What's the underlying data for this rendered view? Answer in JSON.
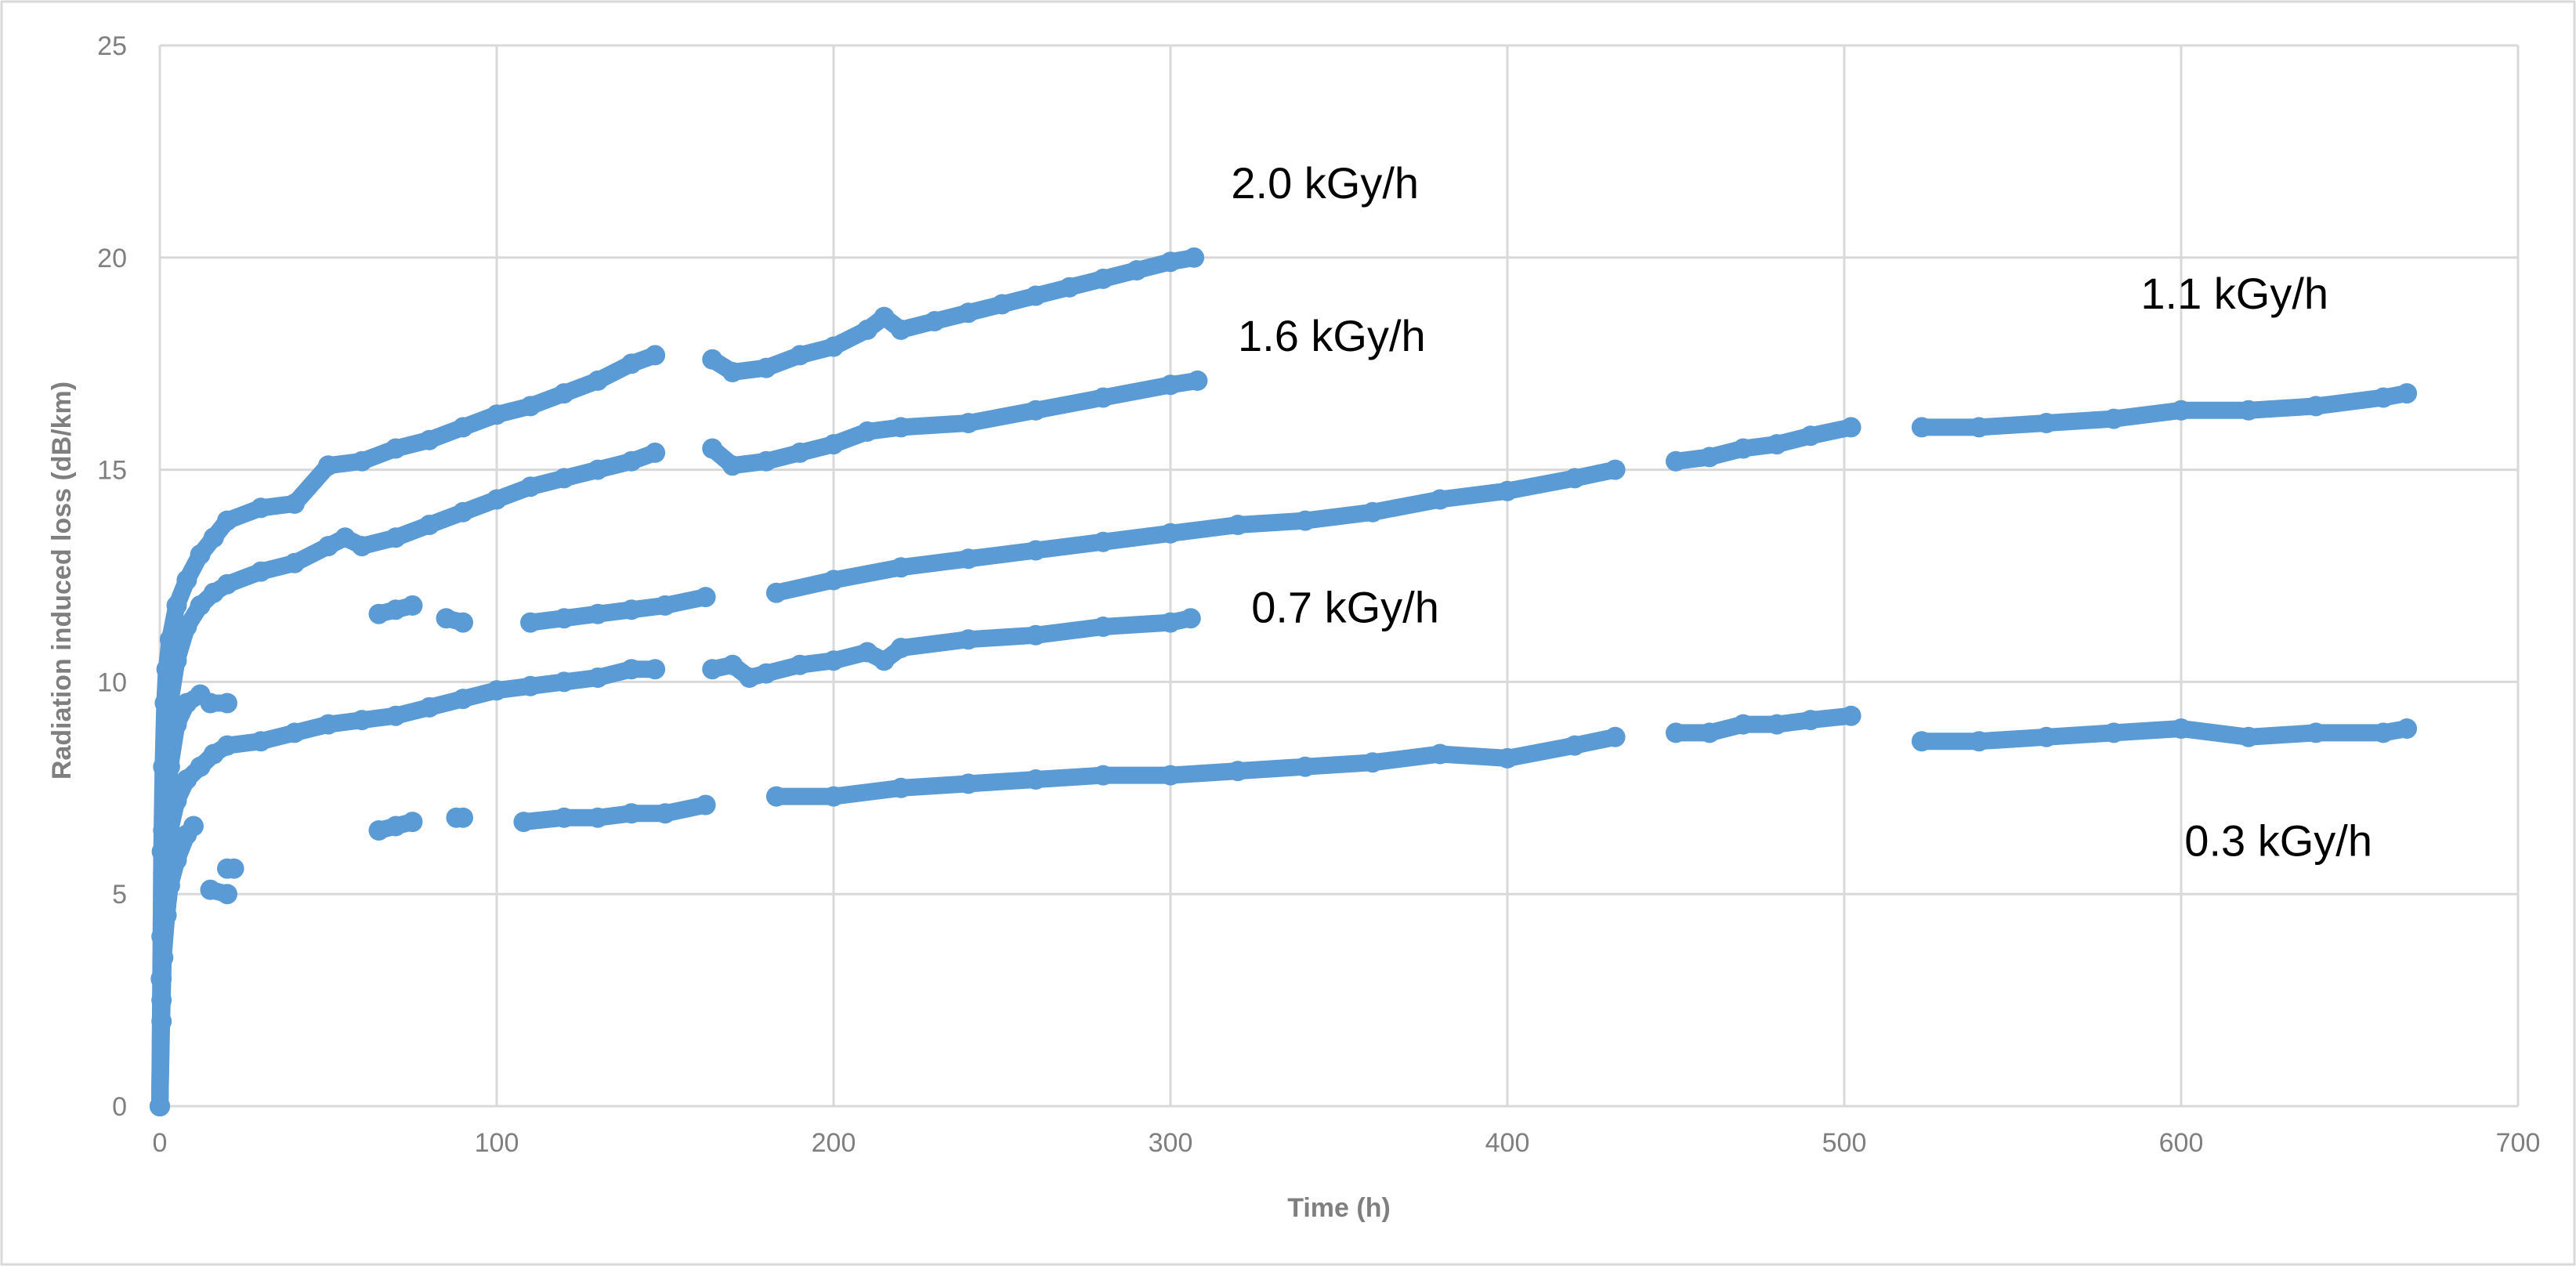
{
  "chart_data": {
    "type": "scatter",
    "title": "",
    "xlabel": "Time (h)",
    "ylabel": "Radiation induced loss (dB/km)",
    "xlim": [
      0,
      700
    ],
    "ylim": [
      0,
      25
    ],
    "x_ticks": [
      "0",
      "100",
      "200",
      "300",
      "400",
      "500",
      "600",
      "700"
    ],
    "y_ticks": [
      "0",
      "5",
      "10",
      "15",
      "20",
      "25"
    ],
    "grid": true,
    "legend": "none",
    "marker_color": "#5b9bd5",
    "series": [
      {
        "name": "2.0 kGy/h",
        "segments": [
          [
            [
              0,
              0
            ],
            [
              0.3,
              3
            ],
            [
              0.6,
              6
            ],
            [
              1,
              8
            ],
            [
              1.5,
              9.5
            ],
            [
              2,
              10.3
            ],
            [
              3,
              11
            ],
            [
              5,
              11.8
            ],
            [
              8,
              12.4
            ],
            [
              12,
              13
            ],
            [
              16,
              13.4
            ],
            [
              20,
              13.8
            ],
            [
              30,
              14.1
            ],
            [
              40,
              14.2
            ],
            [
              50,
              15.1
            ],
            [
              60,
              15.2
            ],
            [
              70,
              15.5
            ],
            [
              80,
              15.7
            ],
            [
              90,
              16
            ],
            [
              100,
              16.3
            ],
            [
              110,
              16.5
            ],
            [
              120,
              16.8
            ],
            [
              130,
              17.1
            ],
            [
              140,
              17.5
            ],
            [
              147,
              17.7
            ]
          ],
          [
            [
              164,
              17.6
            ],
            [
              170,
              17.3
            ],
            [
              180,
              17.4
            ],
            [
              190,
              17.7
            ],
            [
              200,
              17.9
            ],
            [
              210,
              18.3
            ],
            [
              215,
              18.6
            ],
            [
              220,
              18.3
            ],
            [
              230,
              18.5
            ],
            [
              240,
              18.7
            ],
            [
              250,
              18.9
            ],
            [
              260,
              19.1
            ],
            [
              270,
              19.3
            ],
            [
              280,
              19.5
            ],
            [
              290,
              19.7
            ],
            [
              300,
              19.9
            ],
            [
              307,
              20
            ]
          ]
        ]
      },
      {
        "name": "1.6 kGy/h",
        "segments": [
          [
            [
              0,
              0
            ],
            [
              0.5,
              4
            ],
            [
              1,
              6.5
            ],
            [
              2,
              8.5
            ],
            [
              3,
              9.5
            ],
            [
              5,
              10.5
            ],
            [
              8,
              11.3
            ],
            [
              12,
              11.8
            ],
            [
              16,
              12.1
            ],
            [
              20,
              12.3
            ],
            [
              30,
              12.6
            ],
            [
              40,
              12.8
            ],
            [
              50,
              13.2
            ],
            [
              55,
              13.4
            ],
            [
              60,
              13.2
            ],
            [
              70,
              13.4
            ],
            [
              80,
              13.7
            ],
            [
              90,
              14
            ],
            [
              100,
              14.3
            ],
            [
              110,
              14.6
            ],
            [
              120,
              14.8
            ],
            [
              130,
              15
            ],
            [
              140,
              15.2
            ],
            [
              147,
              15.4
            ]
          ],
          [
            [
              164,
              15.5
            ],
            [
              170,
              15.1
            ],
            [
              180,
              15.2
            ],
            [
              190,
              15.4
            ],
            [
              200,
              15.6
            ],
            [
              210,
              15.9
            ],
            [
              220,
              16
            ],
            [
              240,
              16.1
            ],
            [
              260,
              16.4
            ],
            [
              280,
              16.7
            ],
            [
              300,
              17
            ],
            [
              308,
              17.1
            ]
          ]
        ]
      },
      {
        "name": "1.1 kGy/h",
        "segments": [
          [
            [
              0,
              0
            ],
            [
              0.5,
              3
            ],
            [
              1,
              5.5
            ],
            [
              2,
              7
            ],
            [
              3,
              8
            ],
            [
              5,
              9
            ],
            [
              8,
              9.5
            ],
            [
              12,
              9.7
            ]
          ],
          [
            [
              65,
              11.6
            ],
            [
              70,
              11.7
            ],
            [
              75,
              11.8
            ]
          ],
          [
            [
              85,
              11.5
            ],
            [
              90,
              11.4
            ]
          ],
          [
            [
              110,
              11.4
            ],
            [
              120,
              11.5
            ],
            [
              130,
              11.6
            ],
            [
              140,
              11.7
            ],
            [
              150,
              11.8
            ],
            [
              162,
              12
            ]
          ],
          [
            [
              183,
              12.1
            ],
            [
              200,
              12.4
            ],
            [
              220,
              12.7
            ],
            [
              240,
              12.9
            ],
            [
              260,
              13.1
            ],
            [
              280,
              13.3
            ],
            [
              300,
              13.5
            ],
            [
              320,
              13.7
            ],
            [
              340,
              13.8
            ],
            [
              360,
              14
            ],
            [
              380,
              14.3
            ],
            [
              400,
              14.5
            ],
            [
              420,
              14.8
            ],
            [
              432,
              15
            ]
          ],
          [
            [
              450,
              15.2
            ],
            [
              460,
              15.3
            ],
            [
              470,
              15.5
            ],
            [
              480,
              15.6
            ],
            [
              490,
              15.8
            ],
            [
              502,
              16
            ]
          ],
          [
            [
              523,
              16
            ],
            [
              540,
              16
            ],
            [
              560,
              16.1
            ],
            [
              580,
              16.2
            ],
            [
              600,
              16.4
            ],
            [
              620,
              16.4
            ],
            [
              640,
              16.5
            ],
            [
              660,
              16.7
            ],
            [
              667,
              16.8
            ]
          ]
        ]
      },
      {
        "name": "0.7 kGy/h",
        "segments": [
          [
            [
              0,
              0
            ],
            [
              0.5,
              2.5
            ],
            [
              1,
              4.5
            ],
            [
              2,
              5.8
            ],
            [
              3,
              6.5
            ],
            [
              5,
              7.2
            ],
            [
              8,
              7.7
            ],
            [
              12,
              8
            ],
            [
              16,
              8.3
            ],
            [
              20,
              8.5
            ],
            [
              30,
              8.6
            ],
            [
              40,
              8.8
            ],
            [
              50,
              9
            ],
            [
              60,
              9.1
            ],
            [
              70,
              9.2
            ],
            [
              80,
              9.4
            ],
            [
              90,
              9.6
            ],
            [
              100,
              9.8
            ],
            [
              110,
              9.9
            ],
            [
              120,
              10
            ],
            [
              130,
              10.1
            ],
            [
              140,
              10.3
            ],
            [
              147,
              10.3
            ]
          ],
          [
            [
              164,
              10.3
            ],
            [
              170,
              10.4
            ],
            [
              175,
              10.1
            ],
            [
              180,
              10.2
            ],
            [
              190,
              10.4
            ],
            [
              200,
              10.5
            ],
            [
              210,
              10.7
            ],
            [
              215,
              10.5
            ],
            [
              220,
              10.8
            ],
            [
              240,
              11
            ],
            [
              260,
              11.1
            ],
            [
              280,
              11.3
            ],
            [
              300,
              11.4
            ],
            [
              306,
              11.5
            ]
          ]
        ]
      },
      {
        "name": "0.3 kGy/h",
        "segments": [
          [
            [
              0,
              0
            ],
            [
              0.5,
              2
            ],
            [
              1,
              3.5
            ],
            [
              2,
              4.5
            ],
            [
              3,
              5.2
            ],
            [
              5,
              5.8
            ],
            [
              8,
              6.4
            ],
            [
              10,
              6.6
            ]
          ],
          [
            [
              15,
              9.5
            ],
            [
              20,
              9.5
            ]
          ],
          [
            [
              15,
              5.1
            ],
            [
              20,
              5
            ]
          ],
          [
            [
              20,
              5.6
            ],
            [
              22,
              5.6
            ]
          ],
          [
            [
              65,
              6.5
            ],
            [
              70,
              6.6
            ],
            [
              75,
              6.7
            ]
          ],
          [
            [
              88,
              6.8
            ],
            [
              90,
              6.8
            ]
          ],
          [
            [
              108,
              6.7
            ],
            [
              120,
              6.8
            ],
            [
              130,
              6.8
            ],
            [
              140,
              6.9
            ],
            [
              150,
              6.9
            ],
            [
              162,
              7.1
            ]
          ],
          [
            [
              183,
              7.3
            ],
            [
              200,
              7.3
            ],
            [
              220,
              7.5
            ],
            [
              240,
              7.6
            ],
            [
              260,
              7.7
            ],
            [
              280,
              7.8
            ],
            [
              300,
              7.8
            ],
            [
              320,
              7.9
            ],
            [
              340,
              8
            ],
            [
              360,
              8.1
            ],
            [
              380,
              8.3
            ],
            [
              400,
              8.2
            ],
            [
              420,
              8.5
            ],
            [
              432,
              8.7
            ]
          ],
          [
            [
              450,
              8.8
            ],
            [
              460,
              8.8
            ],
            [
              470,
              9
            ],
            [
              480,
              9
            ],
            [
              490,
              9.1
            ],
            [
              502,
              9.2
            ]
          ],
          [
            [
              523,
              8.6
            ],
            [
              540,
              8.6
            ],
            [
              560,
              8.7
            ],
            [
              580,
              8.8
            ],
            [
              600,
              8.9
            ],
            [
              620,
              8.7
            ],
            [
              640,
              8.8
            ],
            [
              660,
              8.8
            ],
            [
              667,
              8.9
            ]
          ]
        ]
      }
    ],
    "annotations": [
      {
        "text": "2.0 kGy/h",
        "x": 318,
        "y": 21.4
      },
      {
        "text": "1.6 kGy/h",
        "x": 320,
        "y": 17.8
      },
      {
        "text": "1.1 kGy/h",
        "x": 588,
        "y": 18.8
      },
      {
        "text": "0.7 kGy/h",
        "x": 324,
        "y": 11.4
      },
      {
        "text": "0.3 kGy/h",
        "x": 601,
        "y": 5.9
      }
    ]
  }
}
